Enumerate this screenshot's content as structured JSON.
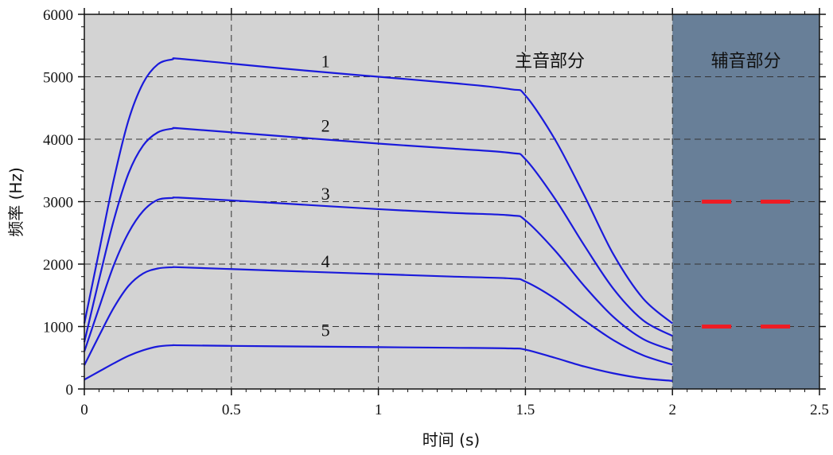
{
  "chart_data": {
    "type": "line",
    "xlabel": "时间 (s)",
    "ylabel": "频率 (Hz)",
    "xlim": [
      0,
      2.5
    ],
    "ylim": [
      0,
      6000
    ],
    "xticks": [
      0,
      0.5,
      1,
      1.5,
      2,
      2.5
    ],
    "xtick_labels": [
      "0",
      "0.5",
      "1",
      "1.5",
      "2",
      "2.5"
    ],
    "yticks": [
      0,
      1000,
      2000,
      3000,
      4000,
      5000,
      6000
    ],
    "ytick_labels": [
      "0",
      "1000",
      "2000",
      "3000",
      "4000",
      "5000",
      "6000"
    ],
    "grid": "dashed",
    "regions": [
      {
        "label": "主音部分",
        "x_range": [
          0,
          2
        ],
        "color": "#d3d3d3"
      },
      {
        "label": "辅音部分",
        "x_range": [
          2,
          2.5
        ],
        "color": "#687f98"
      }
    ],
    "series": [
      {
        "name": "1",
        "color": "#1a1adb",
        "x": [
          0,
          0.05,
          0.1,
          0.15,
          0.2,
          0.25,
          0.3,
          0.32,
          0.5,
          0.75,
          1.0,
          1.25,
          1.45,
          1.5,
          1.6,
          1.7,
          1.8,
          1.9,
          2.0
        ],
        "y": [
          1050,
          2200,
          3350,
          4300,
          4900,
          5200,
          5280,
          5290,
          5210,
          5100,
          5000,
          4900,
          4800,
          4700,
          4000,
          3100,
          2150,
          1450,
          1050
        ]
      },
      {
        "name": "2",
        "color": "#1a1adb",
        "x": [
          0,
          0.05,
          0.1,
          0.15,
          0.2,
          0.25,
          0.3,
          0.32,
          0.5,
          0.75,
          1.0,
          1.25,
          1.45,
          1.5,
          1.6,
          1.7,
          1.8,
          1.9,
          2.0
        ],
        "y": [
          750,
          1750,
          2700,
          3450,
          3900,
          4110,
          4170,
          4175,
          4110,
          4020,
          3930,
          3850,
          3780,
          3680,
          3050,
          2300,
          1600,
          1100,
          850
        ]
      },
      {
        "name": "3",
        "color": "#1a1adb",
        "x": [
          0,
          0.05,
          0.1,
          0.15,
          0.2,
          0.25,
          0.3,
          0.32,
          0.5,
          0.75,
          1.0,
          1.25,
          1.45,
          1.5,
          1.6,
          1.7,
          1.8,
          1.9,
          2.0
        ],
        "y": [
          600,
          1300,
          1980,
          2500,
          2850,
          3030,
          3060,
          3065,
          3020,
          2950,
          2880,
          2820,
          2780,
          2700,
          2220,
          1650,
          1150,
          800,
          620
        ]
      },
      {
        "name": "4",
        "color": "#1a1adb",
        "x": [
          0,
          0.05,
          0.1,
          0.15,
          0.2,
          0.25,
          0.3,
          0.32,
          0.5,
          0.75,
          1.0,
          1.25,
          1.45,
          1.5,
          1.6,
          1.7,
          1.8,
          1.9,
          2.0
        ],
        "y": [
          380,
          850,
          1300,
          1650,
          1850,
          1930,
          1950,
          1950,
          1920,
          1880,
          1840,
          1800,
          1770,
          1720,
          1450,
          1100,
          780,
          540,
          390
        ]
      },
      {
        "name": "5",
        "color": "#1a1adb",
        "x": [
          0,
          0.05,
          0.1,
          0.15,
          0.2,
          0.25,
          0.3,
          0.32,
          0.5,
          0.75,
          1.0,
          1.25,
          1.45,
          1.5,
          1.6,
          1.7,
          1.8,
          1.9,
          2.0
        ],
        "y": [
          150,
          280,
          410,
          530,
          620,
          680,
          700,
          700,
          690,
          680,
          670,
          660,
          650,
          630,
          500,
          360,
          250,
          170,
          130
        ]
      }
    ],
    "markers": [
      {
        "color": "#ee1c24",
        "y": 3000,
        "segments": [
          [
            2.1,
            2.2
          ],
          [
            2.3,
            2.4
          ]
        ]
      },
      {
        "color": "#ee1c24",
        "y": 1000,
        "segments": [
          [
            2.1,
            2.2
          ],
          [
            2.3,
            2.4
          ]
        ]
      }
    ],
    "curve_labels": [
      {
        "text": "1",
        "x": 0.82,
        "y": 5150
      },
      {
        "text": "2",
        "x": 0.82,
        "y": 4120
      },
      {
        "text": "3",
        "x": 0.82,
        "y": 3030
      },
      {
        "text": "4",
        "x": 0.82,
        "y": 1950
      },
      {
        "text": "5",
        "x": 0.82,
        "y": 850
      }
    ]
  }
}
